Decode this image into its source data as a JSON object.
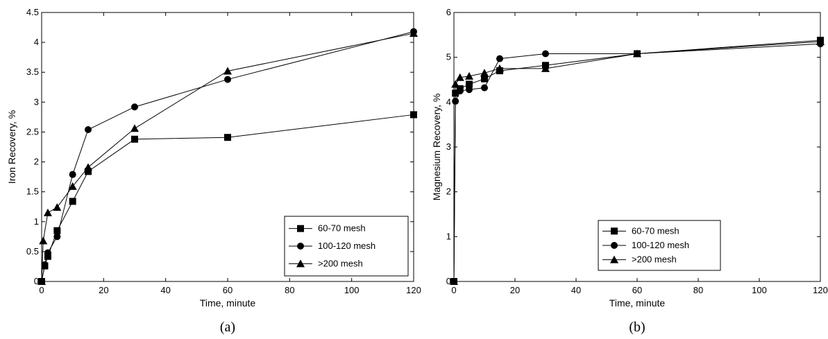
{
  "chart_data": [
    {
      "type": "line",
      "caption": "(a)",
      "xlabel": "Time, minute",
      "ylabel": "Iron Recovery, %",
      "xlim": [
        0,
        120
      ],
      "ylim": [
        0,
        4.5
      ],
      "xticks": [
        "0",
        "20",
        "40",
        "60",
        "80",
        "100",
        "120"
      ],
      "yticks": [
        "0",
        "0.5",
        "1",
        "1.5",
        "2",
        "2.5",
        "3",
        "3.5",
        "4",
        "4.5"
      ],
      "legend_position": "bottom-right",
      "series": [
        {
          "name": "60-70 mesh",
          "marker": "square",
          "x": [
            0,
            1,
            2,
            5,
            10,
            15,
            30,
            60,
            120
          ],
          "y": [
            0,
            0.26,
            0.42,
            0.85,
            1.34,
            1.84,
            2.38,
            2.41,
            2.79
          ]
        },
        {
          "name": "100-120 mesh",
          "marker": "circle",
          "x": [
            0,
            1,
            2,
            5,
            10,
            15,
            30,
            60,
            120
          ],
          "y": [
            0,
            0.28,
            0.48,
            0.75,
            1.79,
            2.54,
            2.92,
            3.38,
            4.18
          ]
        },
        {
          "name": ">200 mesh",
          "marker": "triangle",
          "x": [
            0,
            0.5,
            2,
            5,
            10,
            15,
            30,
            60,
            120
          ],
          "y": [
            0,
            0.68,
            1.15,
            1.24,
            1.59,
            1.91,
            2.56,
            3.52,
            4.15
          ]
        }
      ]
    },
    {
      "type": "line",
      "caption": "(b)",
      "xlabel": "Time, minute",
      "ylabel": "Magnesium Recovery, %",
      "xlim": [
        0,
        120
      ],
      "ylim": [
        0,
        6
      ],
      "xticks": [
        "0",
        "20",
        "40",
        "60",
        "80",
        "100",
        "120"
      ],
      "yticks": [
        "0",
        "1",
        "2",
        "3",
        "4",
        "5",
        "6"
      ],
      "legend_position": "bottom-right",
      "series": [
        {
          "name": "60-70 mesh",
          "marker": "square",
          "x": [
            0,
            0.5,
            2,
            5,
            10,
            15,
            30,
            60,
            120
          ],
          "y": [
            0,
            4.2,
            4.3,
            4.4,
            4.52,
            4.7,
            4.82,
            5.08,
            5.38
          ]
        },
        {
          "name": "100-120 mesh",
          "marker": "circle",
          "x": [
            0,
            0.5,
            2,
            5,
            10,
            15,
            30,
            60,
            120
          ],
          "y": [
            0,
            4.02,
            4.25,
            4.28,
            4.32,
            4.97,
            5.08,
            5.08,
            5.3
          ]
        },
        {
          "name": ">200 mesh",
          "marker": "triangle",
          "x": [
            0,
            0.5,
            2,
            5,
            10,
            15,
            30,
            60,
            120
          ],
          "y": [
            0,
            4.4,
            4.55,
            4.58,
            4.65,
            4.75,
            4.75,
            5.08,
            5.35
          ]
        }
      ]
    }
  ]
}
